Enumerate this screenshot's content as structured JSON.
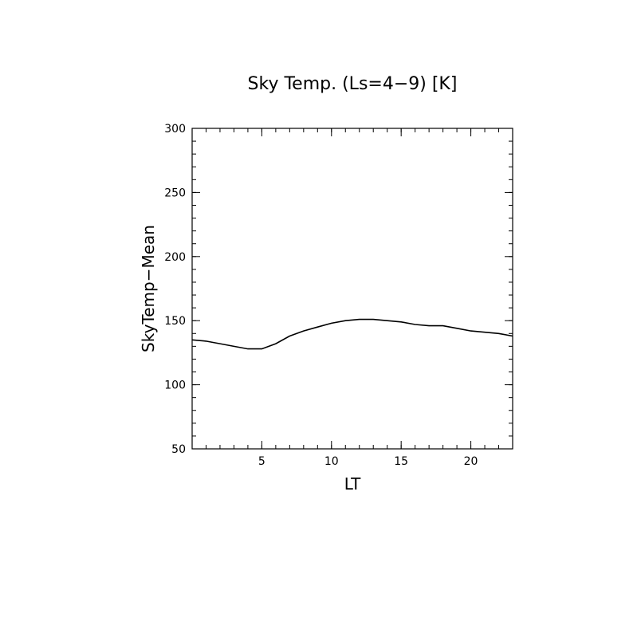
{
  "chart_data": {
    "type": "line",
    "title": "Sky Temp. (Ls=4−9) [K]",
    "xlabel": "LT",
    "ylabel": "SkyTemp−Mean",
    "xlim": [
      0,
      23
    ],
    "ylim": [
      50,
      300
    ],
    "x_ticks": [
      5,
      10,
      15,
      20
    ],
    "x_tick_labels": [
      "5",
      "10",
      "15",
      "20"
    ],
    "x_minor_step": 1,
    "y_ticks": [
      50,
      100,
      150,
      200,
      250,
      300
    ],
    "y_tick_labels": [
      "50",
      "100",
      "150",
      "200",
      "250",
      "300"
    ],
    "y_minor_step": 10,
    "grid": false,
    "series": [
      {
        "x": [
          0,
          1,
          2,
          3,
          4,
          5,
          6,
          7,
          8,
          9,
          10,
          11,
          12,
          13,
          14,
          15,
          16,
          17,
          18,
          19,
          20,
          21,
          22,
          23
        ],
        "y": [
          135,
          134,
          132,
          130,
          128,
          128,
          132,
          138,
          142,
          145,
          148,
          150,
          151,
          151,
          150,
          149,
          147,
          146,
          146,
          144,
          142,
          141,
          140,
          138
        ],
        "color": "#000000"
      }
    ]
  }
}
